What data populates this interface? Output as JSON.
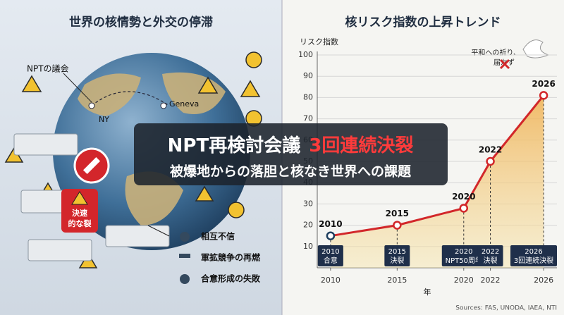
{
  "left_panel": {
    "title": "世界の核情勢と外交の停滞",
    "npt_label": "NPTの議会",
    "cities": [
      "NY",
      "Geneva"
    ],
    "stop_label": [
      "決速",
      "的な裂"
    ],
    "legend": [
      "相互不信",
      "軍拡競争の再燃",
      "合意形成の失敗"
    ]
  },
  "banner": {
    "title": "NPT再検討会議",
    "title_highlight": "3回連続決裂",
    "subtitle": "被爆地からの落胆と核なき世界への課題"
  },
  "chart_data": {
    "type": "line",
    "title": "核リスク指数の上昇トレンド",
    "y_label": "リスク指数",
    "x_label": "年",
    "x": [
      2010,
      2015,
      2020,
      2022,
      2026
    ],
    "values": [
      15,
      20,
      28,
      50,
      81
    ],
    "color": "#d2272a",
    "area_color": "#f0c060",
    "annotations": [
      "合意",
      "決裂",
      "NPT50周年",
      "決裂",
      "3回連続決裂"
    ],
    "dove_note": [
      "平和への祈り、",
      "届かず"
    ],
    "xlim": [
      2009,
      2027
    ],
    "xticks": [
      2010,
      2015,
      2020,
      2022,
      2026
    ],
    "ylim": [
      0,
      100
    ],
    "yticks": [
      10,
      20,
      30,
      40,
      50,
      60,
      70,
      80,
      90,
      100
    ],
    "grid": true,
    "source": "Sources: FAS, UNODA, IAEA, NTI"
  }
}
